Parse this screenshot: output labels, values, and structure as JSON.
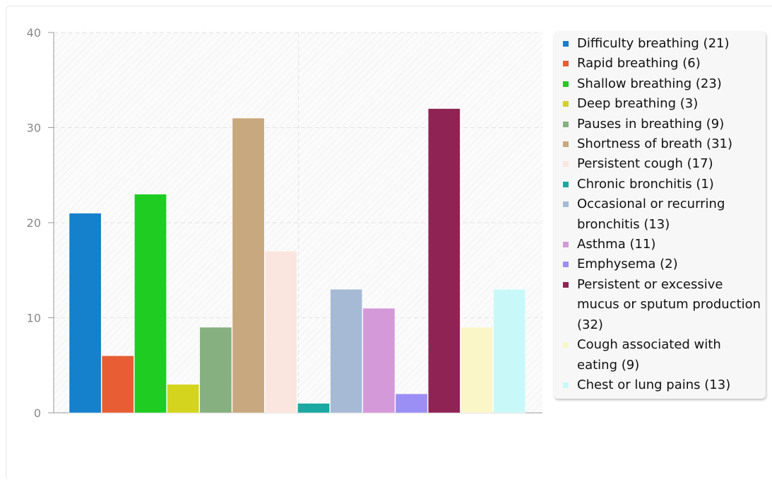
{
  "chart_data": {
    "type": "bar",
    "title": "",
    "xlabel": "",
    "ylabel": "",
    "ylim": [
      0,
      40
    ],
    "yticks": [
      0,
      10,
      20,
      30,
      40
    ],
    "grid": true,
    "legend_position": "right",
    "series": [
      {
        "name": "Difficulty breathing",
        "label": "Difficulty breathing (21)",
        "value": 21,
        "color": "#1580cc"
      },
      {
        "name": "Rapid breathing",
        "label": "Rapid breathing (6)",
        "value": 6,
        "color": "#e85d33"
      },
      {
        "name": "Shallow breathing",
        "label": "Shallow breathing (23)",
        "value": 23,
        "color": "#1fcc22"
      },
      {
        "name": "Deep breathing",
        "label": "Deep breathing (3)",
        "value": 3,
        "color": "#d4d41f"
      },
      {
        "name": "Pauses in breathing",
        "label": "Pauses in breathing (9)",
        "value": 9,
        "color": "#86b07f"
      },
      {
        "name": "Shortness of breath",
        "label": "Shortness of breath (31)",
        "value": 31,
        "color": "#c8a87f"
      },
      {
        "name": "Persistent cough",
        "label": "Persistent cough (17)",
        "value": 17,
        "color": "#fae6de"
      },
      {
        "name": "Chronic bronchitis",
        "label": "Chronic bronchitis (1)",
        "value": 1,
        "color": "#1aa9a0"
      },
      {
        "name": "Occasional or recurring bronchitis",
        "label": "Occasional or recurring bronchitis (13)",
        "value": 13,
        "color": "#a6bad6"
      },
      {
        "name": "Asthma",
        "label": "Asthma (11)",
        "value": 11,
        "color": "#d499d9"
      },
      {
        "name": "Emphysema",
        "label": "Emphysema (2)",
        "value": 2,
        "color": "#9b8ef4"
      },
      {
        "name": "Persistent or excessive mucus or sputum production",
        "label": "Persistent or excessive mucus or sputum production (32)",
        "value": 32,
        "color": "#8f2454"
      },
      {
        "name": "Cough associated with eating",
        "label": "Cough associated with eating (9)",
        "value": 9,
        "color": "#faf6c8"
      },
      {
        "name": "Chest or lung pains",
        "label": "Chest or lung pains (13)",
        "value": 13,
        "color": "#c9f8f8"
      }
    ]
  }
}
